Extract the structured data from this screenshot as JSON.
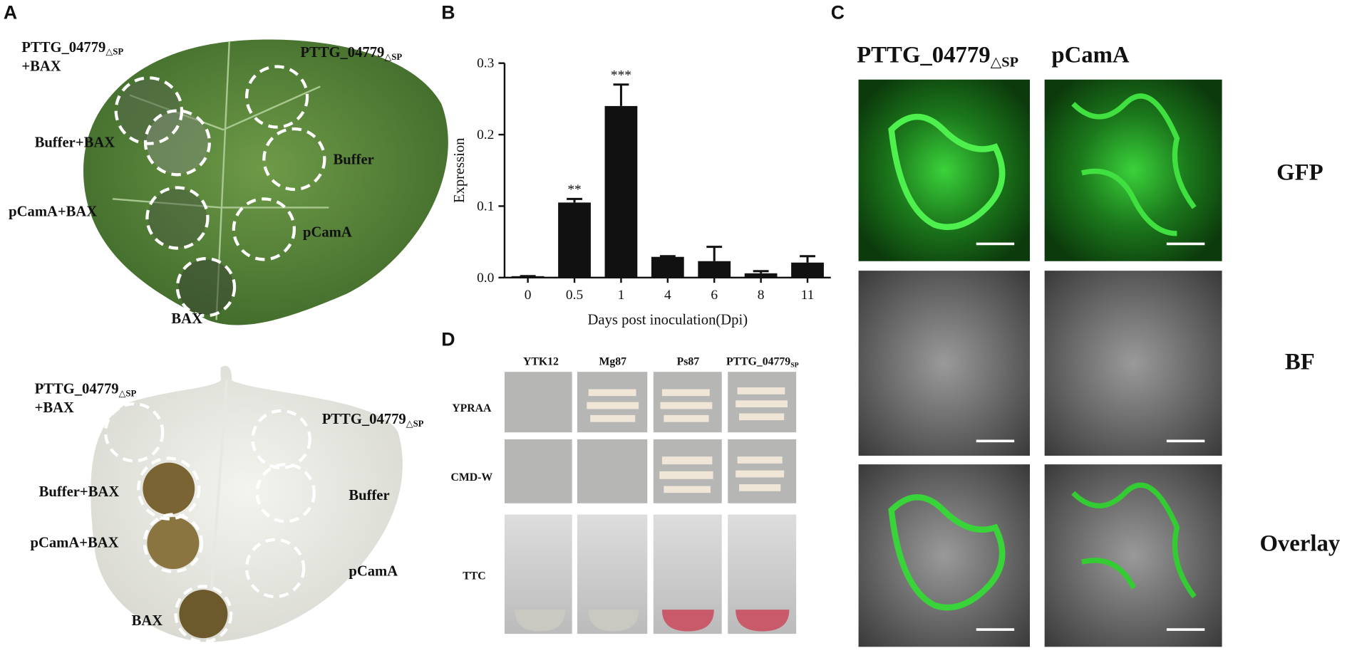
{
  "panel_a": {
    "label": "A",
    "top_leaf": [
      {
        "main": "PTTG_04779",
        "sub": "△SP",
        "line2": "+BAX"
      },
      {
        "main": "PTTG_04779",
        "sub": "△SP"
      },
      "Buffer+BAX",
      "Buffer",
      "pCamA+BAX",
      "pCamA",
      "BAX"
    ],
    "bottom_leaf": [
      {
        "main": "PTTG_04779",
        "sub": "△SP",
        "line2": "+BAX"
      },
      {
        "main": "PTTG_04779",
        "sub": "△SP"
      },
      "Buffer+BAX",
      "Buffer",
      "pCamA+BAX",
      "pCamA",
      "BAX"
    ]
  },
  "chart_data": {
    "type": "bar",
    "label": "B",
    "ylabel": "Expression",
    "xlabel": "Days post inoculation(Dpi)",
    "categories": [
      "0",
      "0.5",
      "1",
      "4",
      "6",
      "8",
      "11"
    ],
    "values": [
      0.002,
      0.105,
      0.24,
      0.029,
      0.023,
      0.006,
      0.021
    ],
    "errors": [
      0,
      0.005,
      0.03,
      0.001,
      0.02,
      0.003,
      0.009
    ],
    "annotations": [
      null,
      "**",
      "***",
      null,
      null,
      null,
      null
    ],
    "color": "#111111",
    "ylim": [
      0,
      0.3
    ],
    "yticks": [
      {
        "value": 0,
        "label": "0.0"
      },
      0.1,
      0.2,
      0.3
    ]
  },
  "panel_c": {
    "label": "C",
    "columns": [
      {
        "main": "PTTG_04779",
        "sub": "△SP"
      },
      {
        "main": "pCamA"
      }
    ],
    "rows": [
      "GFP",
      "BF",
      "Overlay"
    ]
  },
  "panel_d": {
    "label": "D",
    "columns": [
      {
        "main": "YTK12"
      },
      {
        "main": "Mg87"
      },
      {
        "main": "Ps87"
      },
      {
        "main": "PTTG_04779",
        "sub": "SP"
      }
    ],
    "rows": [
      "YPRAA",
      "CMD-W",
      "TTC"
    ]
  }
}
